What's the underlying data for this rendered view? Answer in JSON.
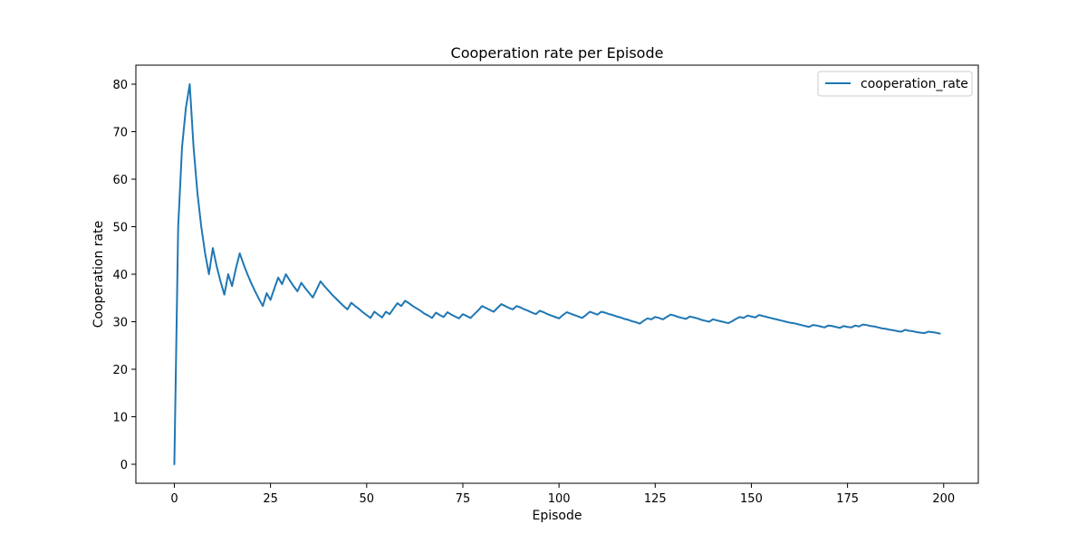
{
  "chart_data": {
    "type": "line",
    "title": "Cooperation rate per Episode",
    "xlabel": "Episode",
    "ylabel": "Cooperation rate",
    "xlim": [
      -10,
      209
    ],
    "ylim": [
      -4,
      84
    ],
    "xticks": [
      0,
      25,
      50,
      75,
      100,
      125,
      150,
      175,
      200
    ],
    "yticks": [
      0,
      10,
      20,
      30,
      40,
      50,
      60,
      70,
      80
    ],
    "grid": false,
    "legend": "top-right",
    "series": [
      {
        "name": "cooperation_rate",
        "color": "#1f77b4",
        "x": [
          0,
          1,
          2,
          3,
          4,
          5,
          6,
          7,
          8,
          9,
          10,
          11,
          12,
          13,
          14,
          15,
          16,
          17,
          18,
          19,
          20,
          21,
          22,
          23,
          24,
          25,
          26,
          27,
          28,
          29,
          30,
          31,
          32,
          33,
          34,
          35,
          36,
          37,
          38,
          39,
          40,
          41,
          42,
          43,
          44,
          45,
          46,
          47,
          48,
          49,
          50,
          51,
          52,
          53,
          54,
          55,
          56,
          57,
          58,
          59,
          60,
          61,
          62,
          63,
          64,
          65,
          66,
          67,
          68,
          69,
          70,
          71,
          72,
          73,
          74,
          75,
          76,
          77,
          78,
          79,
          80,
          81,
          82,
          83,
          84,
          85,
          86,
          87,
          88,
          89,
          90,
          91,
          92,
          93,
          94,
          95,
          96,
          97,
          98,
          99,
          100,
          101,
          102,
          103,
          104,
          105,
          106,
          107,
          108,
          109,
          110,
          111,
          112,
          113,
          114,
          115,
          116,
          117,
          118,
          119,
          120,
          121,
          122,
          123,
          124,
          125,
          126,
          127,
          128,
          129,
          130,
          131,
          132,
          133,
          134,
          135,
          136,
          137,
          138,
          139,
          140,
          141,
          142,
          143,
          144,
          145,
          146,
          147,
          148,
          149,
          150,
          151,
          152,
          153,
          154,
          155,
          156,
          157,
          158,
          159,
          160,
          161,
          162,
          163,
          164,
          165,
          166,
          167,
          168,
          169,
          170,
          171,
          172,
          173,
          174,
          175,
          176,
          177,
          178,
          179,
          180,
          181,
          182,
          183,
          184,
          185,
          186,
          187,
          188,
          189,
          190,
          191,
          192,
          193,
          194,
          195,
          196,
          197,
          198,
          199
        ],
        "values": [
          0,
          50,
          66.7,
          75,
          80,
          66.7,
          57.1,
          50,
          44.4,
          40,
          45.5,
          41.7,
          38.5,
          35.7,
          40,
          37.5,
          41.2,
          44.4,
          42.1,
          40,
          38.1,
          36.4,
          34.8,
          33.3,
          36,
          34.6,
          37,
          39.3,
          37.9,
          40,
          38.7,
          37.5,
          36.4,
          38.2,
          37.1,
          36.1,
          35.1,
          36.8,
          38.5,
          37.5,
          36.6,
          35.7,
          34.9,
          34.1,
          33.3,
          32.6,
          34,
          33.3,
          32.7,
          32,
          31.4,
          30.8,
          32.1,
          31.5,
          30.9,
          32.1,
          31.6,
          32.8,
          33.9,
          33.3,
          34.4,
          33.9,
          33.3,
          32.8,
          32.3,
          31.7,
          31.3,
          30.8,
          31.9,
          31.4,
          31,
          32,
          31.5,
          31.1,
          30.7,
          31.6,
          31.2,
          30.8,
          31.6,
          32.4,
          33.3,
          32.9,
          32.5,
          32.1,
          32.9,
          33.7,
          33.3,
          32.9,
          32.6,
          33.3,
          33,
          32.6,
          32.3,
          31.9,
          31.6,
          32.3,
          32,
          31.6,
          31.3,
          31,
          30.7,
          31.4,
          32,
          31.7,
          31.4,
          31.1,
          30.8,
          31.4,
          32.1,
          31.8,
          31.5,
          32.1,
          31.9,
          31.6,
          31.4,
          31.1,
          30.9,
          30.6,
          30.4,
          30.1,
          29.9,
          29.6,
          30.2,
          30.7,
          30.5,
          31,
          30.8,
          30.5,
          31,
          31.5,
          31.3,
          31,
          30.8,
          30.6,
          31.1,
          30.9,
          30.7,
          30.4,
          30.2,
          30,
          30.5,
          30.3,
          30.1,
          29.9,
          29.7,
          30.1,
          30.6,
          31,
          30.8,
          31.3,
          31.1,
          30.9,
          31.4,
          31.2,
          31,
          30.8,
          30.6,
          30.4,
          30.2,
          30,
          29.8,
          29.7,
          29.5,
          29.3,
          29.1,
          28.9,
          29.3,
          29.2,
          29,
          28.8,
          29.2,
          29.1,
          28.9,
          28.7,
          29.1,
          28.9,
          28.8,
          29.2,
          29,
          29.4,
          29.3,
          29.1,
          29,
          28.8,
          28.6,
          28.5,
          28.3,
          28.2,
          28,
          27.9,
          28.3,
          28.1,
          28,
          27.8,
          27.7,
          27.6,
          27.9,
          27.8,
          27.7,
          27.5
        ]
      }
    ]
  }
}
